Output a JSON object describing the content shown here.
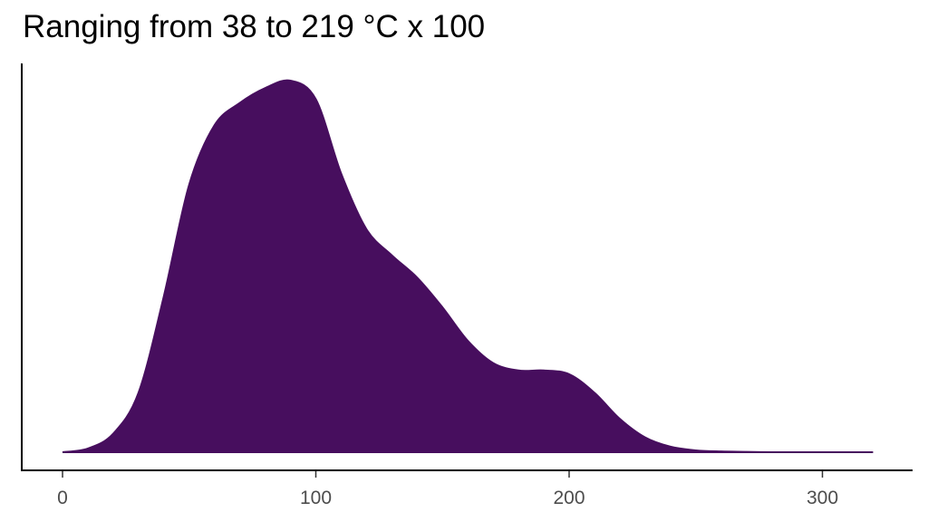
{
  "chart_data": {
    "type": "area",
    "title": "Ranging from 38 to 219 °C x 100",
    "xlabel": "",
    "ylabel": "",
    "xlim": [
      -17,
      335
    ],
    "ylim": [
      0,
      1
    ],
    "x_ticks": [
      0,
      100,
      200,
      300
    ],
    "x_tick_labels": [
      "0",
      "100",
      "200",
      "300"
    ],
    "y_ticks_shown": false,
    "grid": false,
    "legend": "none",
    "fill_color": "#470E5E",
    "series": [
      {
        "x": [
          0,
          10,
          20,
          30,
          40,
          50,
          60,
          70,
          80,
          90,
          100,
          110,
          120,
          130,
          140,
          150,
          160,
          170,
          180,
          190,
          200,
          210,
          220,
          230,
          240,
          250,
          260,
          270,
          280,
          290,
          300,
          310,
          320
        ],
        "values": [
          0.0,
          0.01,
          0.05,
          0.16,
          0.42,
          0.72,
          0.88,
          0.94,
          0.98,
          1.0,
          0.95,
          0.75,
          0.6,
          0.53,
          0.47,
          0.39,
          0.3,
          0.24,
          0.22,
          0.22,
          0.21,
          0.16,
          0.09,
          0.04,
          0.015,
          0.005,
          0.002,
          0.001,
          0.0,
          0.0,
          0.0,
          0.0,
          0.0
        ]
      }
    ]
  }
}
